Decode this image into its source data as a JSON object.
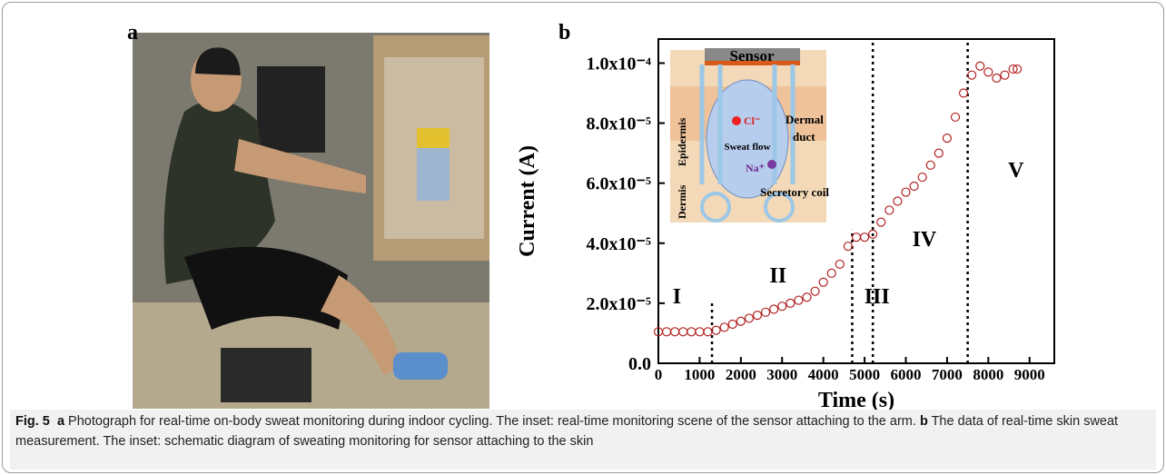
{
  "panel_a": {
    "label": "a"
  },
  "panel_b": {
    "label": "b"
  },
  "inset": {
    "sensor": "Sensor",
    "epidermis": "Epidermis",
    "dermis": "Dermis",
    "duct_1": "Dermal",
    "duct_2": "duct",
    "flow": "Sweat flow",
    "cl": "Cl⁻",
    "na": "Na⁺",
    "coil": "Secretory coil"
  },
  "chart_data": {
    "type": "scatter",
    "xlabel": "Time (s)",
    "ylabel": "Current (A)",
    "color": "#b22222",
    "x": [
      0,
      200,
      400,
      600,
      800,
      1000,
      1200,
      1400,
      1600,
      1800,
      2000,
      2200,
      2400,
      2600,
      2800,
      3000,
      3200,
      3400,
      3600,
      3800,
      4000,
      4200,
      4400,
      4600,
      4800,
      5000,
      5200,
      5400,
      5600,
      5800,
      6000,
      6200,
      6400,
      6600,
      6800,
      7000,
      7200,
      7400,
      7600,
      7800,
      8000,
      8200,
      8400,
      8600,
      8700
    ],
    "values": [
      1.05e-05,
      1.05e-05,
      1.05e-05,
      1.05e-05,
      1.05e-05,
      1.05e-05,
      1.05e-05,
      1.1e-05,
      1.2e-05,
      1.3e-05,
      1.4e-05,
      1.5e-05,
      1.6e-05,
      1.7e-05,
      1.8e-05,
      1.9e-05,
      2e-05,
      2.1e-05,
      2.2e-05,
      2.4e-05,
      2.7e-05,
      3e-05,
      3.3e-05,
      3.9e-05,
      4.2e-05,
      4.2e-05,
      4.3e-05,
      4.7e-05,
      5.1e-05,
      5.4e-05,
      5.7e-05,
      5.9e-05,
      6.2e-05,
      6.6e-05,
      7e-05,
      7.5e-05,
      8.2e-05,
      9e-05,
      9.6e-05,
      9.9e-05,
      9.7e-05,
      9.5e-05,
      9.6e-05,
      9.8e-05,
      9.8e-05
    ],
    "xlim": [
      0,
      9600
    ],
    "ylim": [
      0,
      0.000108
    ],
    "xticks": [
      0,
      1000,
      2000,
      3000,
      4000,
      5000,
      6000,
      7000,
      8000,
      9000
    ],
    "yticks": [
      {
        "value": 0,
        "label": "0.0"
      },
      {
        "value": 2e-05,
        "label": "2.0x10⁻⁵"
      },
      {
        "value": 4e-05,
        "label": "4.0x10⁻⁵"
      },
      {
        "value": 6e-05,
        "label": "6.0x10⁻⁵"
      },
      {
        "value": 8e-05,
        "label": "8.0x10⁻⁵"
      },
      {
        "value": 0.0001,
        "label": "1.0x10⁻⁴"
      }
    ],
    "dividers": [
      {
        "x": 1300,
        "y": 2.1e-05
      },
      {
        "x": 4700,
        "y": 4.45e-05
      },
      {
        "x": 5200,
        "y": 0.000108
      },
      {
        "x": 7500,
        "y": 0.000108
      }
    ],
    "annotations": [
      {
        "text": "I",
        "x": 450,
        "y": 2e-05
      },
      {
        "text": "II",
        "x": 2900,
        "y": 2.7e-05
      },
      {
        "text": "III",
        "x": 5300,
        "y": 2e-05
      },
      {
        "text": "IV",
        "x": 6450,
        "y": 3.9e-05
      },
      {
        "text": "V",
        "x": 8670,
        "y": 6.2e-05
      }
    ]
  },
  "caption": {
    "figure": "Fig. 5",
    "parts": [
      {
        "label": "a",
        "text": "Photograph for real-time on-body sweat monitoring during indoor cycling. The inset: real-time monitoring scene of the sensor attaching to the arm."
      },
      {
        "label": "b",
        "text": "The data of real-time skin sweat measurement. The inset: schematic diagram of sweating monitoring for sensor attaching to the skin"
      }
    ]
  }
}
